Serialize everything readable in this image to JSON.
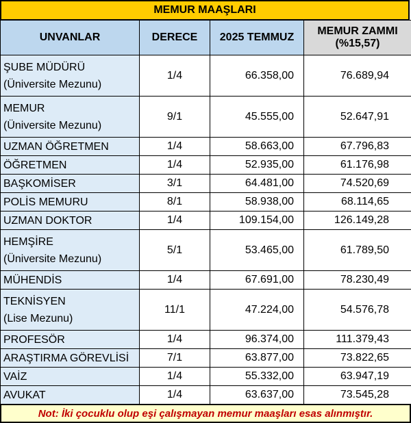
{
  "title": "MEMUR MAAŞLARI",
  "headers": {
    "col1": "UNVANLAR",
    "col2": "DERECE",
    "col3": "2025 TEMMUZ",
    "col4_line1": "MEMUR ZAMMI",
    "col4_line2": "(%15,57)"
  },
  "rows": [
    {
      "name": "ŞUBE MÜDÜRÜ",
      "sub": "(Üniversite Mezunu)",
      "derece": "1/4",
      "temmuz": "66.358,00",
      "zam": "76.689,94"
    },
    {
      "name": "MEMUR",
      "sub": "(Üniversite Mezunu)",
      "derece": "9/1",
      "temmuz": "45.555,00",
      "zam": "52.647,91"
    },
    {
      "name": "UZMAN ÖĞRETMEN",
      "sub": "",
      "derece": "1/4",
      "temmuz": "58.663,00",
      "zam": "67.796,83"
    },
    {
      "name": "ÖĞRETMEN",
      "sub": "",
      "derece": "1/4",
      "temmuz": "52.935,00",
      "zam": "61.176,98"
    },
    {
      "name": "BAŞKOMİSER",
      "sub": "",
      "derece": "3/1",
      "temmuz": "64.481,00",
      "zam": "74.520,69"
    },
    {
      "name": "POLİS MEMURU",
      "sub": "",
      "derece": "8/1",
      "temmuz": "58.938,00",
      "zam": "68.114,65"
    },
    {
      "name": "UZMAN DOKTOR",
      "sub": "",
      "derece": "1/4",
      "temmuz": "109.154,00",
      "zam": "126.149,28"
    },
    {
      "name": "HEMŞİRE",
      "sub": "(Üniversite Mezunu)",
      "derece": "5/1",
      "temmuz": "53.465,00",
      "zam": "61.789,50"
    },
    {
      "name": "MÜHENDİS",
      "sub": "",
      "derece": "1/4",
      "temmuz": "67.691,00",
      "zam": "78.230,49"
    },
    {
      "name": "TEKNİSYEN",
      "sub": "(Lise Mezunu)",
      "derece": "11/1",
      "temmuz": "47.224,00",
      "zam": "54.576,78"
    },
    {
      "name": "PROFESÖR",
      "sub": "",
      "derece": "1/4",
      "temmuz": "96.374,00",
      "zam": "111.379,43"
    },
    {
      "name": "ARAŞTIRMA GÖREVLİSİ",
      "sub": "",
      "derece": "7/1",
      "temmuz": "63.877,00",
      "zam": "73.822,65"
    },
    {
      "name": "VAİZ",
      "sub": "",
      "derece": "1/4",
      "temmuz": "55.332,00",
      "zam": "63.947,19"
    },
    {
      "name": "AVUKAT",
      "sub": "",
      "derece": "1/4",
      "temmuz": "63.637,00",
      "zam": "73.545,28"
    }
  ],
  "note": "Not: İki çocuklu olup eşi çalışmayan memur maaşları esas alınmıştır.",
  "colors": {
    "title_bg": "#ffcc00",
    "header_bg": "#bdd7ee",
    "name_bg": "#ddebf7",
    "note_text": "#c00000"
  }
}
